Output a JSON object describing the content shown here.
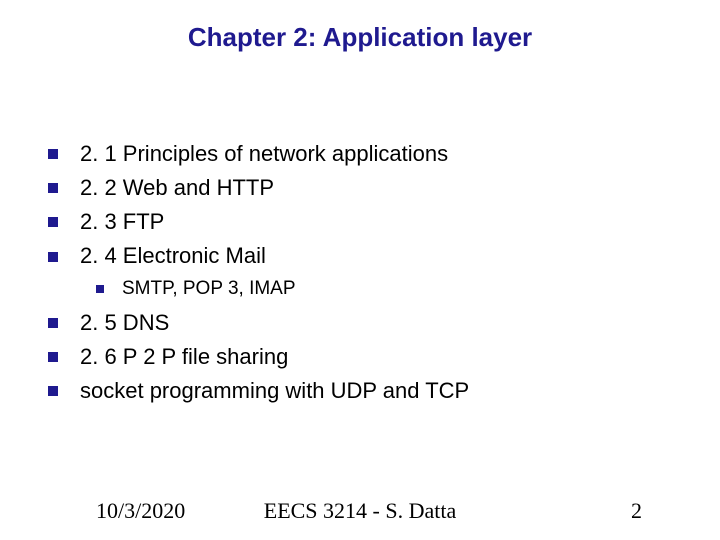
{
  "title": {
    "text": "Chapter 2: Application layer",
    "color": "#1f1a8f",
    "fontsize": 26
  },
  "bullet": {
    "color": "#1f1a8f"
  },
  "body_text": {
    "color": "#000000",
    "fontsize": 22,
    "sub_fontsize": 19
  },
  "items": [
    {
      "text": "2. 1 Principles of network applications"
    },
    {
      "text": "2. 2 Web and HTTP"
    },
    {
      "text": "2. 3 FTP"
    },
    {
      "text": "2. 4 Electronic Mail"
    }
  ],
  "subitem": {
    "text": "SMTP, POP 3, IMAP"
  },
  "items2": [
    {
      "text": "2. 5 DNS"
    },
    {
      "text": "2. 6 P 2 P file sharing"
    },
    {
      "text": "socket programming with UDP and TCP"
    }
  ],
  "footer": {
    "date": "10/3/2020",
    "center": "EECS 3214 - S. Datta",
    "page": "2",
    "fontsize": 22,
    "color": "#000000"
  }
}
